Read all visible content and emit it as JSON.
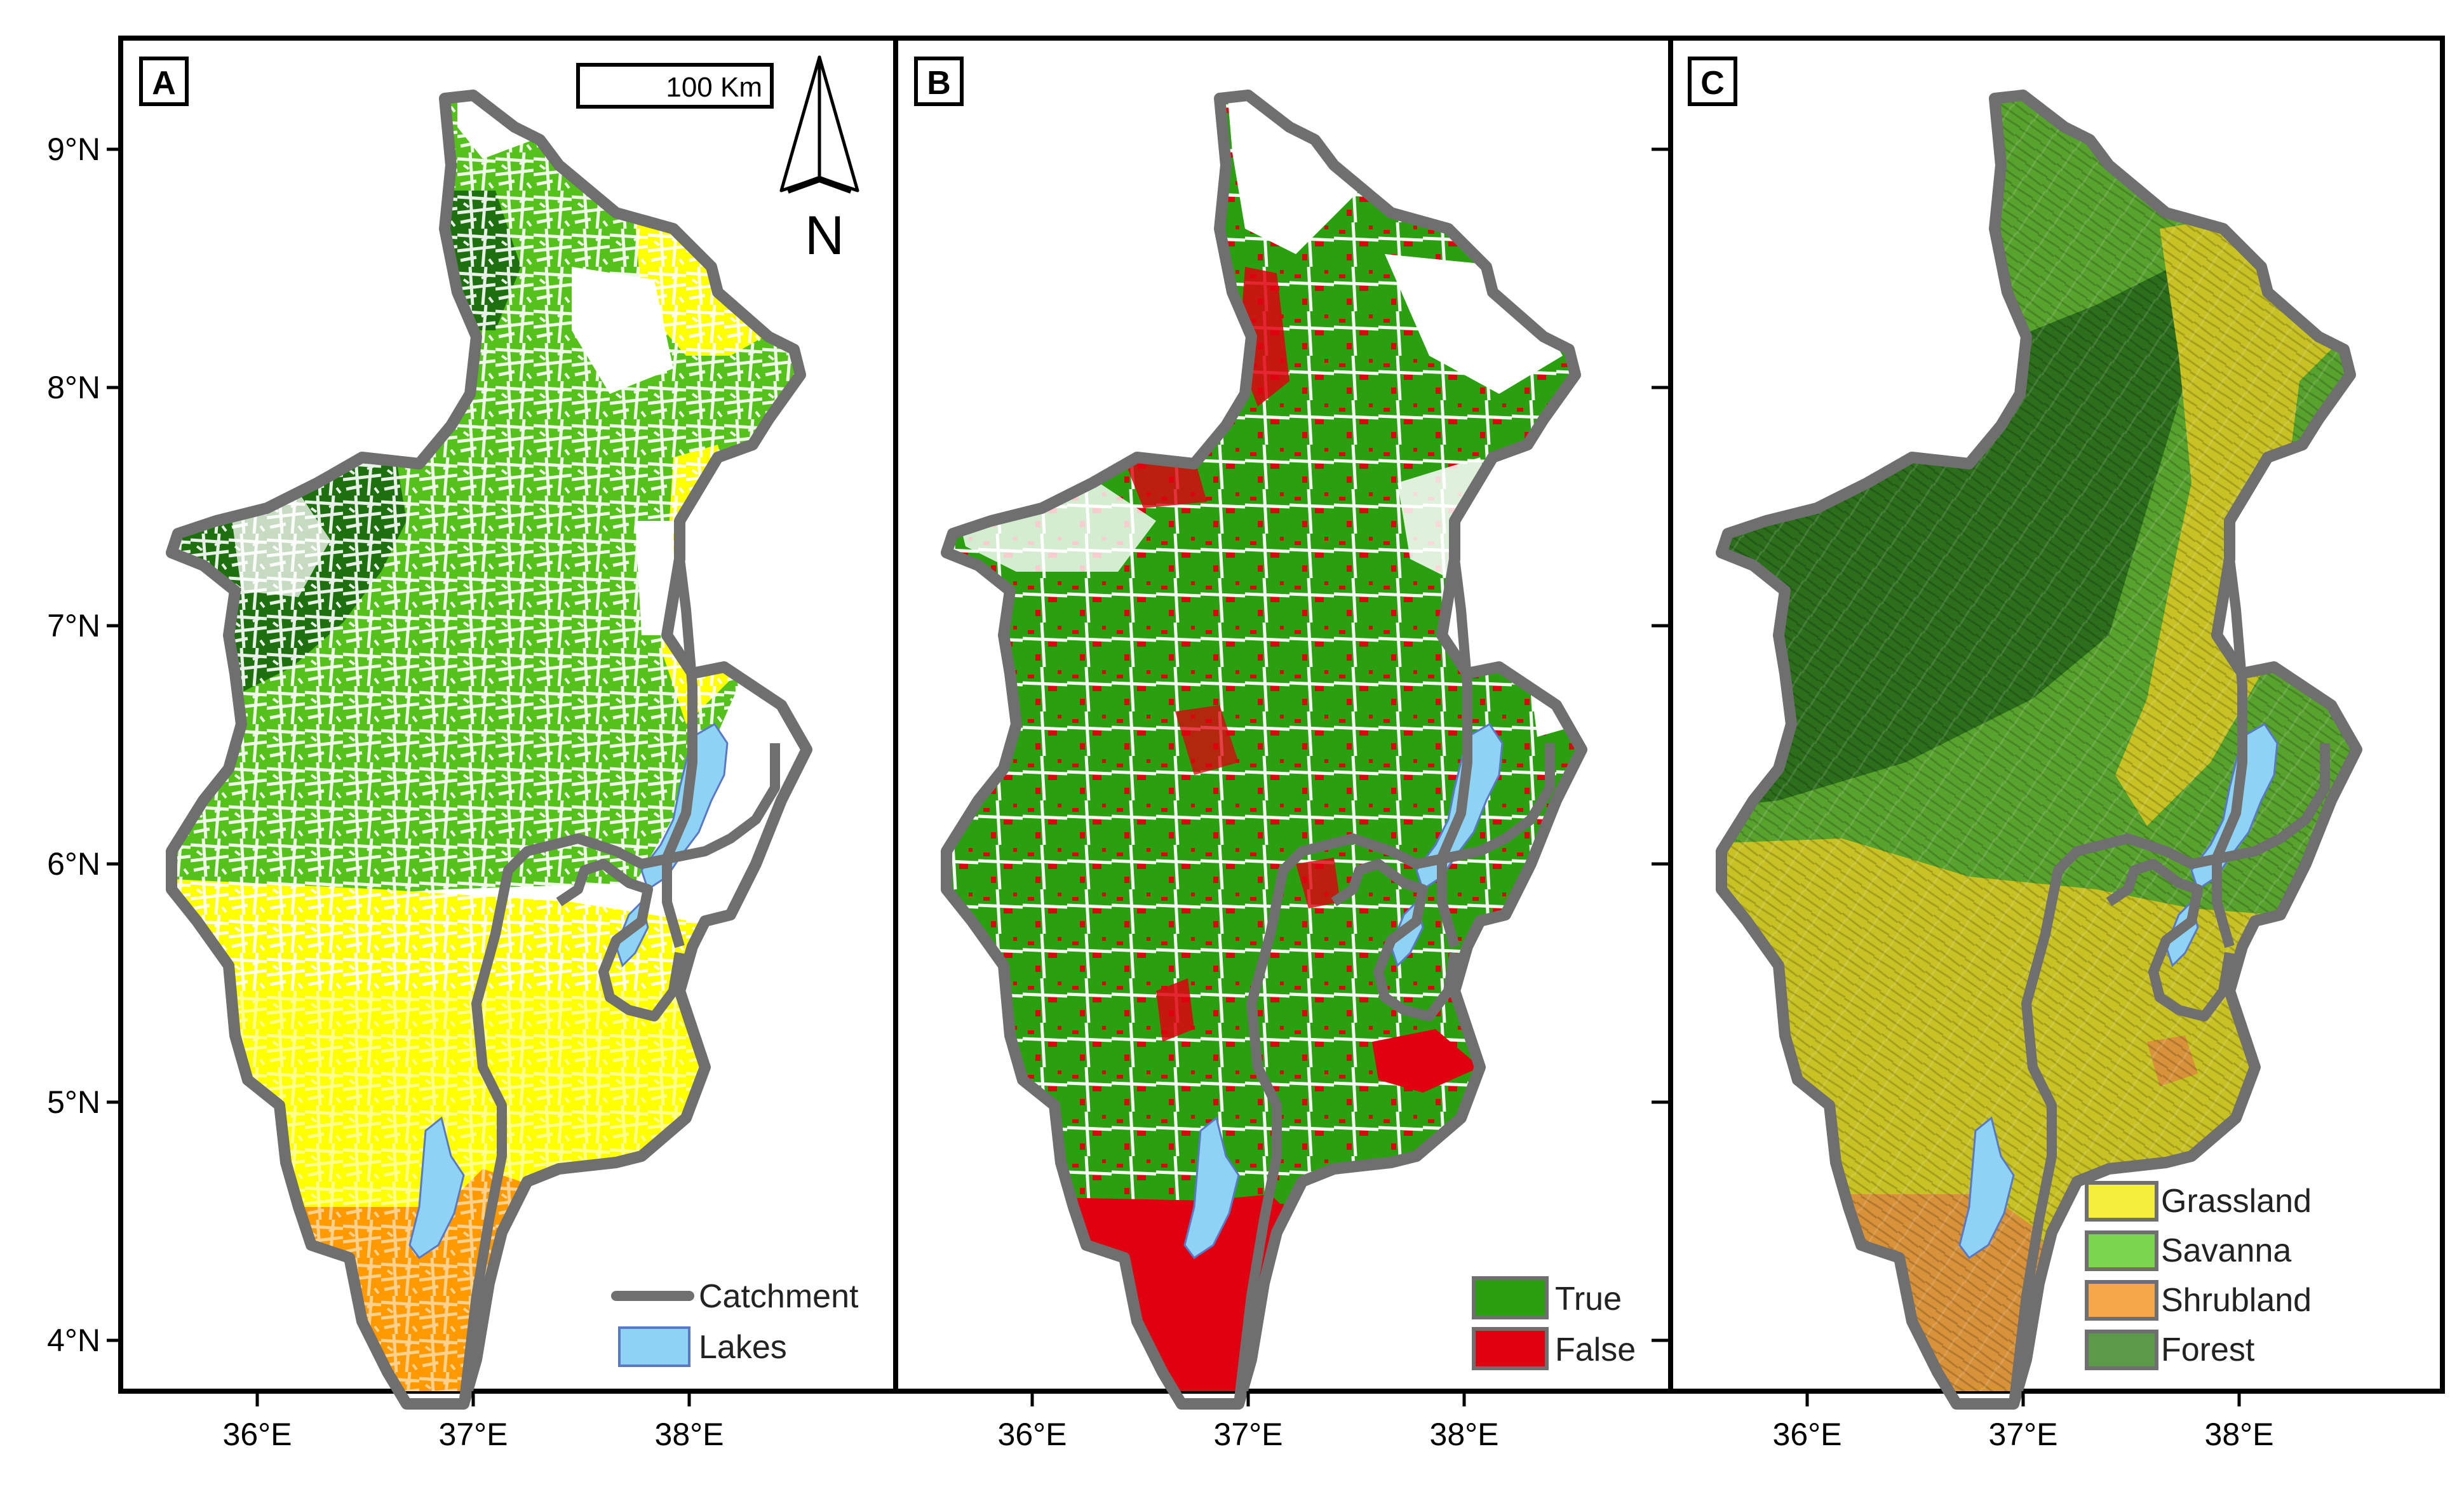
{
  "panels": [
    {
      "letter": "A"
    },
    {
      "letter": "B"
    },
    {
      "letter": "C"
    }
  ],
  "latitude_labels": [
    "9°N",
    "8°N",
    "7°N",
    "6°N",
    "5°N",
    "4°N"
  ],
  "longitude_labels": [
    "36°E",
    "37°E",
    "38°E"
  ],
  "scale_bar": {
    "label": "100 Km"
  },
  "north_arrow": {
    "label": "N"
  },
  "legend_a": [
    {
      "label": "Catchment",
      "symbol": "line",
      "color": "#6f6f6f"
    },
    {
      "label": "Lakes",
      "symbol": "patch",
      "color": "#8fd3f4"
    }
  ],
  "legend_b": [
    {
      "label": "True",
      "color": "#2aa010"
    },
    {
      "label": "False",
      "color": "#e0000f"
    }
  ],
  "legend_c": [
    {
      "label": "Grassland",
      "color": "#f5ee3c"
    },
    {
      "label": "Savanna",
      "color": "#79d64c"
    },
    {
      "label": "Shrubland",
      "color": "#f5a84a"
    },
    {
      "label": "Forest",
      "color": "#5c9a4a"
    }
  ],
  "colors": {
    "grassland": "#ffff00",
    "savanna_light": "#55c21b",
    "forest_dark": "#1e6f0e",
    "shrubland": "#ff9900",
    "true_green": "#2aa010",
    "false_red": "#e0000f",
    "lake": "#8fd3f4",
    "catchment": "#6f6f6f",
    "relief_forest": "#2c6e1c",
    "relief_savanna": "#58a22e",
    "relief_grass": "#c8c224",
    "relief_shrub": "#d8923a"
  }
}
